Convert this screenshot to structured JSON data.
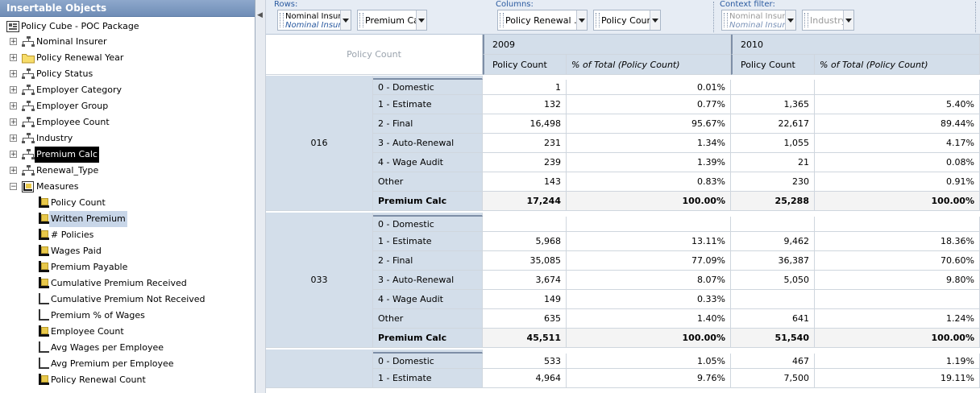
{
  "panel": {
    "title": "Insertable Objects",
    "package": "Policy Cube - POC Package",
    "items": [
      {
        "label": "Nominal Insurer",
        "icon": "dimension-icon"
      },
      {
        "label": "Policy Renewal Year",
        "icon": "folder-icon"
      },
      {
        "label": "Policy Status",
        "icon": "dimension-icon"
      },
      {
        "label": "Employer Category",
        "icon": "dimension-icon"
      },
      {
        "label": "Employer Group",
        "icon": "dimension-icon"
      },
      {
        "label": "Employee Count",
        "icon": "dimension-icon"
      },
      {
        "label": "Industry",
        "icon": "dimension-icon"
      },
      {
        "label": "Premium Calc",
        "icon": "dimension-icon"
      },
      {
        "label": "Renewal_Type",
        "icon": "dimension-icon"
      },
      {
        "label": "Measures",
        "icon": "measures-folder-icon"
      }
    ],
    "measures": [
      {
        "label": "Policy Count",
        "icon": "measure-icon"
      },
      {
        "label": "Written Premium",
        "icon": "measure-icon"
      },
      {
        "label": "# Policies",
        "icon": "measure-icon"
      },
      {
        "label": "Wages Paid",
        "icon": "measure-icon"
      },
      {
        "label": "Premium Payable",
        "icon": "measure-icon"
      },
      {
        "label": "Cumulative Premium Received",
        "icon": "measure-icon"
      },
      {
        "label": "Cumulative Premium Not Received",
        "icon": "calculated-measure-icon"
      },
      {
        "label": "Premium % of Wages",
        "icon": "calculated-measure-icon"
      },
      {
        "label": "Employee Count",
        "icon": "measure-icon"
      },
      {
        "label": "Avg Wages per Employee",
        "icon": "calculated-measure-icon"
      },
      {
        "label": "Avg Premium per Employee",
        "icon": "calculated-measure-icon"
      },
      {
        "label": "Policy Renewal Count",
        "icon": "measure-icon"
      }
    ]
  },
  "toolbar": {
    "rows_label": "Rows:",
    "columns_label": "Columns:",
    "context_label": "Context filter:",
    "rows": [
      {
        "title": "Nominal Insurer",
        "subtitle": "Nominal Insurer"
      },
      {
        "title": "Premium Calc"
      }
    ],
    "columns": [
      {
        "title": "Policy Renewal ..."
      },
      {
        "title": "Policy Count"
      }
    ],
    "context": [
      {
        "title": "Nominal Insurer",
        "subtitle": "Nominal Insurer"
      },
      {
        "title": "Industry"
      }
    ]
  },
  "crosstab": {
    "corner": "Policy Count",
    "years": [
      "2009",
      "2010"
    ],
    "measure_headers": [
      "Policy Count",
      "% of Total (Policy Count)"
    ],
    "groups": [
      {
        "name": "016",
        "rows": [
          {
            "label": "0 - Domestic",
            "v": [
              "1",
              "0.01%",
              "",
              ""
            ]
          },
          {
            "label": "1 - Estimate",
            "v": [
              "132",
              "0.77%",
              "1,365",
              "5.40%"
            ]
          },
          {
            "label": "2 - Final",
            "v": [
              "16,498",
              "95.67%",
              "22,617",
              "89.44%"
            ]
          },
          {
            "label": "3 - Auto-Renewal",
            "v": [
              "231",
              "1.34%",
              "1,055",
              "4.17%"
            ]
          },
          {
            "label": "4 - Wage Audit",
            "v": [
              "239",
              "1.39%",
              "21",
              "0.08%"
            ]
          },
          {
            "label": "Other",
            "v": [
              "143",
              "0.83%",
              "230",
              "0.91%"
            ]
          },
          {
            "label": "Premium Calc",
            "v": [
              "17,244",
              "100.00%",
              "25,288",
              "100.00%"
            ],
            "total": true
          }
        ]
      },
      {
        "name": "033",
        "rows": [
          {
            "label": "0 - Domestic",
            "v": [
              "",
              "",
              "",
              ""
            ]
          },
          {
            "label": "1 - Estimate",
            "v": [
              "5,968",
              "13.11%",
              "9,462",
              "18.36%"
            ]
          },
          {
            "label": "2 - Final",
            "v": [
              "35,085",
              "77.09%",
              "36,387",
              "70.60%"
            ]
          },
          {
            "label": "3 - Auto-Renewal",
            "v": [
              "3,674",
              "8.07%",
              "5,050",
              "9.80%"
            ]
          },
          {
            "label": "4 - Wage Audit",
            "v": [
              "149",
              "0.33%",
              "",
              ""
            ]
          },
          {
            "label": "Other",
            "v": [
              "635",
              "1.40%",
              "641",
              "1.24%"
            ]
          },
          {
            "label": "Premium Calc",
            "v": [
              "45,511",
              "100.00%",
              "51,540",
              "100.00%"
            ],
            "total": true
          }
        ]
      },
      {
        "name": "",
        "rows": [
          {
            "label": "0 - Domestic",
            "v": [
              "533",
              "1.05%",
              "467",
              "1.19%"
            ]
          },
          {
            "label": "1 - Estimate",
            "v": [
              "4,964",
              "9.76%",
              "7,500",
              "19.11%"
            ]
          }
        ]
      }
    ]
  }
}
